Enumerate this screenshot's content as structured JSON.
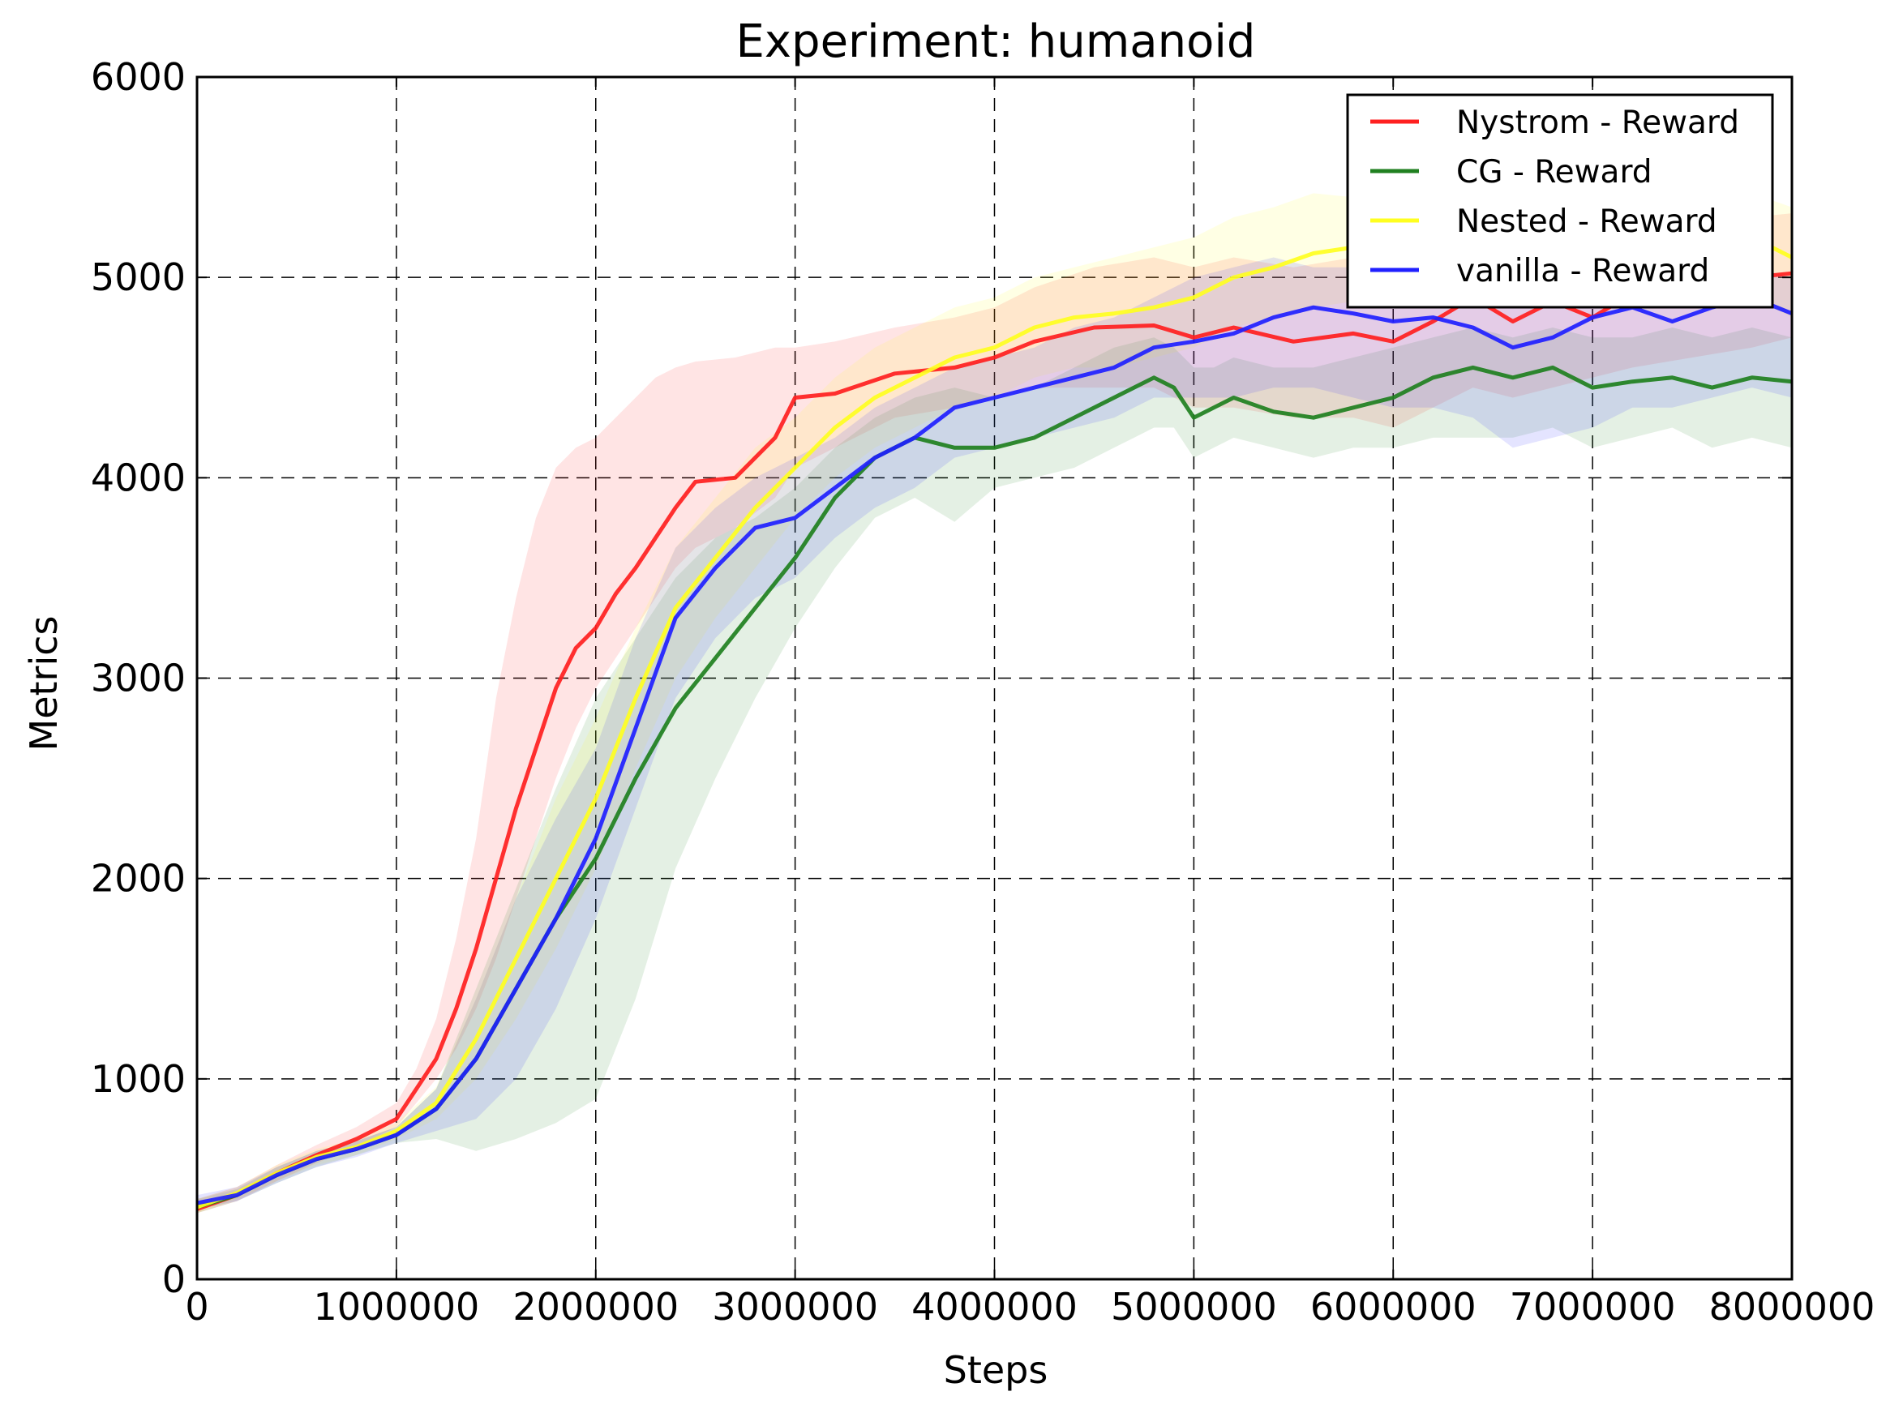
{
  "chart_data": {
    "type": "line",
    "title": "Experiment: humanoid",
    "xlabel": "Steps",
    "ylabel": "Metrics",
    "xlim": [
      0,
      8000000
    ],
    "ylim": [
      0,
      6000
    ],
    "xticks": [
      0,
      1000000,
      2000000,
      3000000,
      4000000,
      5000000,
      6000000,
      7000000,
      8000000
    ],
    "xtick_labels": [
      "0",
      "1000000",
      "2000000",
      "3000000",
      "4000000",
      "5000000",
      "6000000",
      "7000000",
      "8000000"
    ],
    "yticks": [
      0,
      1000,
      2000,
      3000,
      4000,
      5000,
      6000
    ],
    "ytick_labels": [
      "0",
      "1000",
      "2000",
      "3000",
      "4000",
      "5000",
      "6000"
    ],
    "grid": true,
    "legend_position": "top-right",
    "series": [
      {
        "name": "Nystrom - Reward",
        "color": "#ff2020",
        "x": [
          0,
          200000,
          400000,
          600000,
          800000,
          1000000,
          1100000,
          1200000,
          1300000,
          1400000,
          1500000,
          1600000,
          1700000,
          1800000,
          1900000,
          2000000,
          2100000,
          2200000,
          2300000,
          2400000,
          2500000,
          2700000,
          2900000,
          3000000,
          3200000,
          3500000,
          3800000,
          4000000,
          4200000,
          4500000,
          4800000,
          5000000,
          5200000,
          5500000,
          5800000,
          6000000,
          6200000,
          6400000,
          6600000,
          6800000,
          7000000,
          7200000,
          7500000,
          7800000,
          8000000
        ],
        "y": [
          350,
          420,
          530,
          620,
          700,
          800,
          950,
          1100,
          1350,
          1650,
          2000,
          2350,
          2650,
          2950,
          3150,
          3250,
          3420,
          3550,
          3700,
          3850,
          3980,
          4000,
          4200,
          4400,
          4420,
          4520,
          4550,
          4600,
          4680,
          4750,
          4760,
          4700,
          4750,
          4680,
          4720,
          4680,
          4780,
          4900,
          4780,
          4880,
          4800,
          4920,
          4950,
          5000,
          5020
        ],
        "band_lower": [
          330,
          390,
          490,
          580,
          660,
          760,
          880,
          1000,
          1150,
          1350,
          1600,
          1900,
          2200,
          2500,
          2750,
          2950,
          3100,
          3250,
          3400,
          3550,
          3650,
          3750,
          3900,
          4050,
          4150,
          4300,
          4350,
          4400,
          4450,
          4450,
          4450,
          4350,
          4350,
          4300,
          4300,
          4250,
          4350,
          4450,
          4400,
          4450,
          4500,
          4550,
          4600,
          4650,
          4700
        ],
        "band_upper": [
          400,
          460,
          570,
          670,
          760,
          880,
          1050,
          1300,
          1700,
          2200,
          2900,
          3400,
          3800,
          4050,
          4150,
          4200,
          4300,
          4400,
          4500,
          4550,
          4580,
          4600,
          4650,
          4650,
          4680,
          4750,
          4800,
          4850,
          4950,
          5050,
          5100,
          5050,
          5100,
          5050,
          5100,
          5100,
          5150,
          5250,
          5150,
          5250,
          5150,
          5250,
          5250,
          5300,
          5320
        ]
      },
      {
        "name": "CG - Reward",
        "color": "#208020",
        "x": [
          0,
          200000,
          400000,
          600000,
          800000,
          1000000,
          1200000,
          1400000,
          1600000,
          1800000,
          2000000,
          2200000,
          2400000,
          2600000,
          2800000,
          3000000,
          3200000,
          3400000,
          3600000,
          3800000,
          4000000,
          4200000,
          4400000,
          4600000,
          4800000,
          4900000,
          5000000,
          5100000,
          5200000,
          5400000,
          5600000,
          5800000,
          6000000,
          6200000,
          6400000,
          6600000,
          6800000,
          7000000,
          7200000,
          7400000,
          7600000,
          7800000,
          8000000
        ],
        "y": [
          360,
          420,
          520,
          600,
          650,
          720,
          850,
          1100,
          1450,
          1800,
          2100,
          2500,
          2850,
          3100,
          3350,
          3600,
          3900,
          4100,
          4200,
          4150,
          4150,
          4200,
          4300,
          4400,
          4500,
          4450,
          4300,
          4350,
          4400,
          4330,
          4300,
          4350,
          4400,
          4500,
          4550,
          4500,
          4550,
          4450,
          4480,
          4500,
          4450,
          4500,
          4480
        ],
        "band_lower": [
          330,
          390,
          480,
          560,
          620,
          680,
          700,
          640,
          700,
          780,
          900,
          1400,
          2050,
          2500,
          2900,
          3250,
          3550,
          3800,
          3900,
          3780,
          3950,
          4000,
          4050,
          4150,
          4250,
          4250,
          4100,
          4150,
          4200,
          4150,
          4100,
          4150,
          4150,
          4200,
          4200,
          4200,
          4250,
          4150,
          4200,
          4250,
          4150,
          4200,
          4150
        ],
        "band_upper": [
          400,
          450,
          560,
          640,
          690,
          760,
          950,
          1450,
          1950,
          2450,
          2900,
          3200,
          3500,
          3700,
          3800,
          3950,
          4150,
          4300,
          4400,
          4450,
          4400,
          4450,
          4550,
          4650,
          4700,
          4650,
          4550,
          4550,
          4600,
          4550,
          4550,
          4600,
          4650,
          4700,
          4750,
          4700,
          4750,
          4700,
          4700,
          4750,
          4700,
          4750,
          4700
        ]
      },
      {
        "name": "Nested - Reward",
        "color": "#ffff20",
        "x": [
          0,
          200000,
          400000,
          600000,
          800000,
          1000000,
          1200000,
          1400000,
          1600000,
          1800000,
          2000000,
          2200000,
          2400000,
          2600000,
          2800000,
          3000000,
          3200000,
          3400000,
          3600000,
          3800000,
          4000000,
          4200000,
          4400000,
          4600000,
          4800000,
          5000000,
          5200000,
          5400000,
          5600000,
          5800000,
          6000000,
          6200000,
          6400000,
          6600000,
          6800000,
          7000000,
          7200000,
          7400000,
          7600000,
          7800000,
          8000000
        ],
        "y": [
          360,
          430,
          530,
          610,
          660,
          740,
          880,
          1200,
          1600,
          2000,
          2400,
          2900,
          3350,
          3600,
          3850,
          4050,
          4250,
          4400,
          4500,
          4600,
          4650,
          4750,
          4800,
          4820,
          4850,
          4900,
          5000,
          5050,
          5120,
          5150,
          5180,
          5200,
          5250,
          5200,
          5220,
          5250,
          5180,
          5200,
          5150,
          5200,
          5100
        ],
        "band_lower": [
          330,
          400,
          490,
          570,
          620,
          700,
          800,
          1000,
          1300,
          1650,
          2050,
          2550,
          3000,
          3300,
          3550,
          3800,
          4000,
          4150,
          4250,
          4350,
          4400,
          4500,
          4550,
          4550,
          4600,
          4650,
          4750,
          4800,
          4850,
          4880,
          4900,
          4900,
          4950,
          4900,
          4950,
          4950,
          4900,
          4900,
          4850,
          4900,
          4800
        ],
        "band_upper": [
          400,
          460,
          570,
          650,
          700,
          780,
          960,
          1400,
          1900,
          2400,
          2800,
          3250,
          3650,
          3900,
          4150,
          4300,
          4500,
          4650,
          4750,
          4850,
          4900,
          5000,
          5050,
          5100,
          5150,
          5200,
          5300,
          5350,
          5420,
          5400,
          5420,
          5400,
          5450,
          5400,
          5420,
          5450,
          5400,
          5420,
          5380,
          5420,
          5350
        ]
      },
      {
        "name": "vanilla - Reward",
        "color": "#2020ff",
        "x": [
          0,
          200000,
          400000,
          600000,
          800000,
          1000000,
          1200000,
          1400000,
          1600000,
          1800000,
          2000000,
          2200000,
          2400000,
          2600000,
          2800000,
          3000000,
          3200000,
          3400000,
          3600000,
          3800000,
          4000000,
          4200000,
          4400000,
          4600000,
          4800000,
          5000000,
          5200000,
          5400000,
          5600000,
          5800000,
          6000000,
          6200000,
          6400000,
          6600000,
          6800000,
          7000000,
          7200000,
          7400000,
          7600000,
          7800000,
          8000000
        ],
        "y": [
          380,
          420,
          520,
          600,
          650,
          720,
          850,
          1100,
          1450,
          1800,
          2200,
          2750,
          3300,
          3550,
          3750,
          3800,
          3950,
          4100,
          4200,
          4350,
          4400,
          4450,
          4500,
          4550,
          4650,
          4680,
          4720,
          4800,
          4850,
          4820,
          4780,
          4800,
          4750,
          4650,
          4700,
          4800,
          4850,
          4780,
          4850,
          4900,
          4820
        ],
        "band_lower": [
          350,
          390,
          480,
          560,
          610,
          680,
          740,
          800,
          1000,
          1350,
          1800,
          2350,
          2900,
          3200,
          3400,
          3500,
          3700,
          3850,
          3950,
          4100,
          4150,
          4200,
          4250,
          4300,
          4400,
          4400,
          4400,
          4450,
          4450,
          4400,
          4350,
          4350,
          4300,
          4150,
          4200,
          4250,
          4350,
          4350,
          4400,
          4450,
          4400
        ],
        "band_upper": [
          420,
          460,
          560,
          640,
          690,
          760,
          950,
          1400,
          1900,
          2300,
          2650,
          3200,
          3650,
          3850,
          4000,
          4100,
          4200,
          4350,
          4450,
          4550,
          4600,
          4650,
          4750,
          4800,
          4900,
          5000,
          5050,
          5100,
          5050,
          5050,
          5000,
          5000,
          4950,
          4900,
          4950,
          5000,
          5000,
          4950,
          5000,
          5050,
          5000
        ]
      }
    ]
  }
}
